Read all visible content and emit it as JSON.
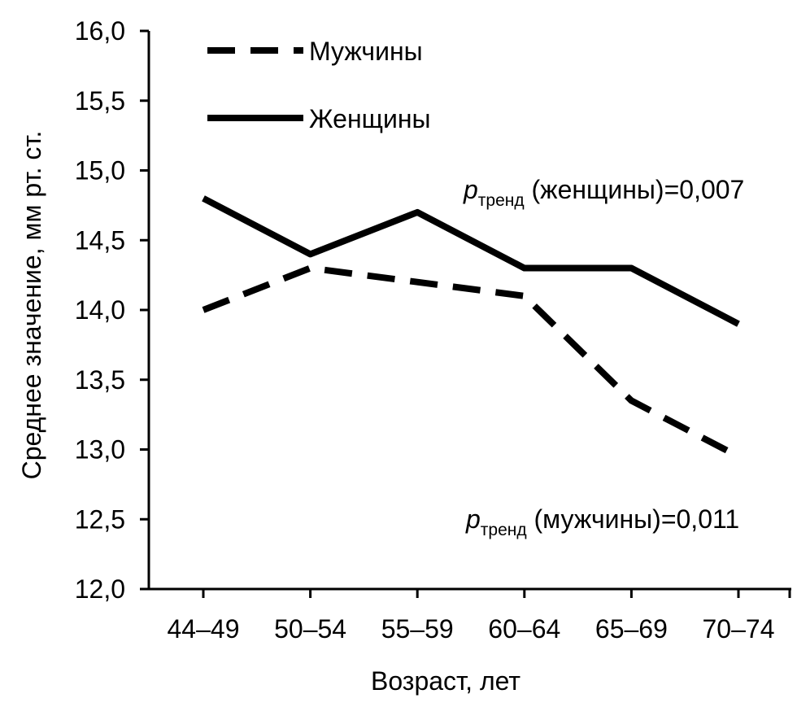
{
  "chart_data": {
    "type": "line",
    "title": "",
    "xlabel": "Возраст, лет",
    "ylabel": "Среднее значение, мм рт. ст.",
    "categories": [
      "44–49",
      "50–54",
      "55–59",
      "60–64",
      "65–69",
      "70–74"
    ],
    "ylim": [
      12.0,
      16.0
    ],
    "yticks": [
      "12,0",
      "12,5",
      "13,0",
      "13,5",
      "14,0",
      "14,5",
      "15,0",
      "15,5",
      "16,0"
    ],
    "grid": false,
    "legend_position": "top-left",
    "series": [
      {
        "name": "Мужчины",
        "style": "dashed",
        "color": "#000000",
        "values": [
          14.0,
          14.3,
          14.2,
          14.1,
          13.35,
          12.95
        ]
      },
      {
        "name": "Женщины",
        "style": "solid",
        "color": "#000000",
        "values": [
          14.8,
          14.4,
          14.7,
          14.3,
          14.3,
          13.9
        ]
      }
    ],
    "annotations": [
      {
        "p": "p",
        "sub": "тренд",
        "text": " (женщины)=0,007"
      },
      {
        "p": "p",
        "sub": "тренд",
        "text": " (мужчины)=0,011"
      }
    ]
  }
}
